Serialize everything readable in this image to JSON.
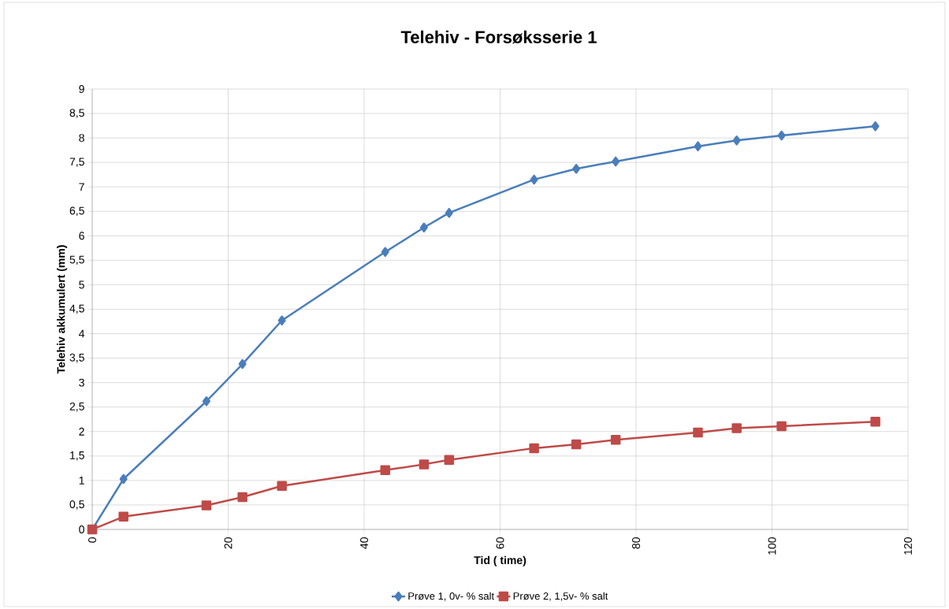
{
  "chart_data": {
    "type": "line",
    "title": "Telehiv - Forsøksserie 1",
    "xlabel": "Tid ( time)",
    "ylabel": "Telehiv akkumulert (mm)",
    "x": [
      0,
      4.6,
      16.8,
      22.1,
      27.9,
      43.1,
      48.8,
      52.5,
      65.0,
      71.2,
      77.0,
      89.1,
      94.8,
      101.4,
      115.2
    ],
    "series": [
      {
        "name": "Prøve 1, 0v- % salt",
        "color": "#4a7ebb",
        "marker": "diamond",
        "values": [
          0,
          1.03,
          2.62,
          3.38,
          4.27,
          5.67,
          6.17,
          6.47,
          7.15,
          7.37,
          7.52,
          7.83,
          7.95,
          8.05,
          8.24
        ]
      },
      {
        "name": "Prøve 2, 1,5v- % salt",
        "color": "#be4b48",
        "marker": "square",
        "values": [
          0,
          0.26,
          0.49,
          0.66,
          0.89,
          1.21,
          1.33,
          1.42,
          1.66,
          1.74,
          1.83,
          1.98,
          2.07,
          2.11,
          2.2
        ]
      }
    ],
    "xlim": [
      0,
      120
    ],
    "xticks": [
      0,
      20,
      40,
      60,
      80,
      100,
      120
    ],
    "ylim": [
      0,
      9
    ],
    "yticks": [
      0,
      {
        "value": 0.5,
        "label": "0,5"
      },
      1,
      {
        "value": 1.5,
        "label": "1,5"
      },
      2,
      {
        "value": 2.5,
        "label": "2,5"
      },
      3,
      {
        "value": 3.5,
        "label": "3,5"
      },
      4,
      {
        "value": 4.5,
        "label": "4,5"
      },
      5,
      {
        "value": 5.5,
        "label": "5,5"
      },
      6,
      {
        "value": 6.5,
        "label": "6,5"
      },
      7,
      {
        "value": 7.5,
        "label": "7,5"
      },
      8,
      {
        "value": 8.5,
        "label": "8,5"
      },
      9
    ],
    "grid": true,
    "legend": "bottom"
  }
}
